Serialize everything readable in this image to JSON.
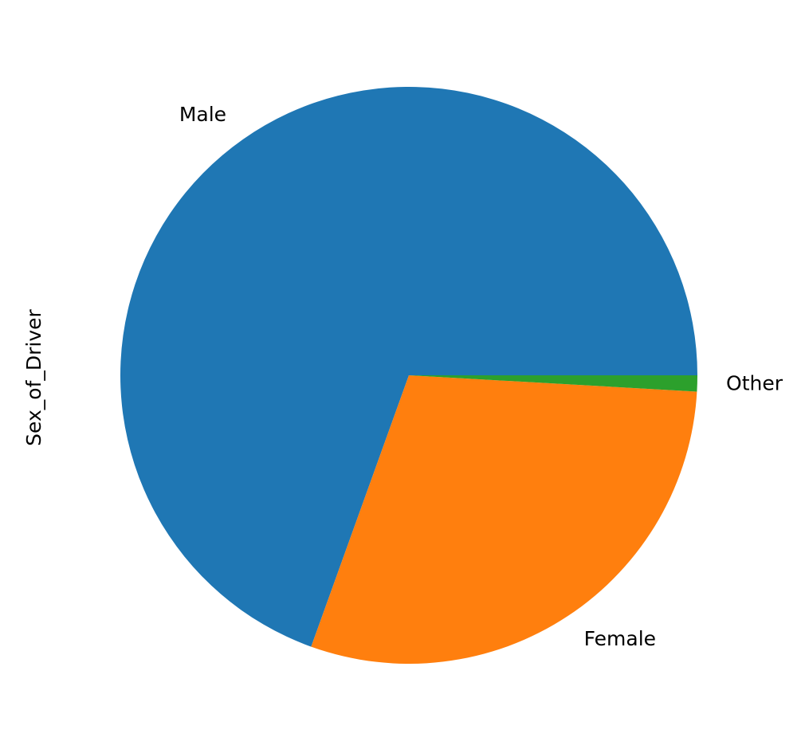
{
  "chart_data": {
    "type": "pie",
    "ylabel": "Sex_of_Driver",
    "categories": [
      "Male",
      "Female",
      "Other"
    ],
    "values": [
      69.5,
      29.6,
      0.9
    ],
    "colors": [
      "#1f77b4",
      "#ff7f0e",
      "#2ca02c"
    ],
    "startangle": 0,
    "direction": "counterclockwise"
  }
}
